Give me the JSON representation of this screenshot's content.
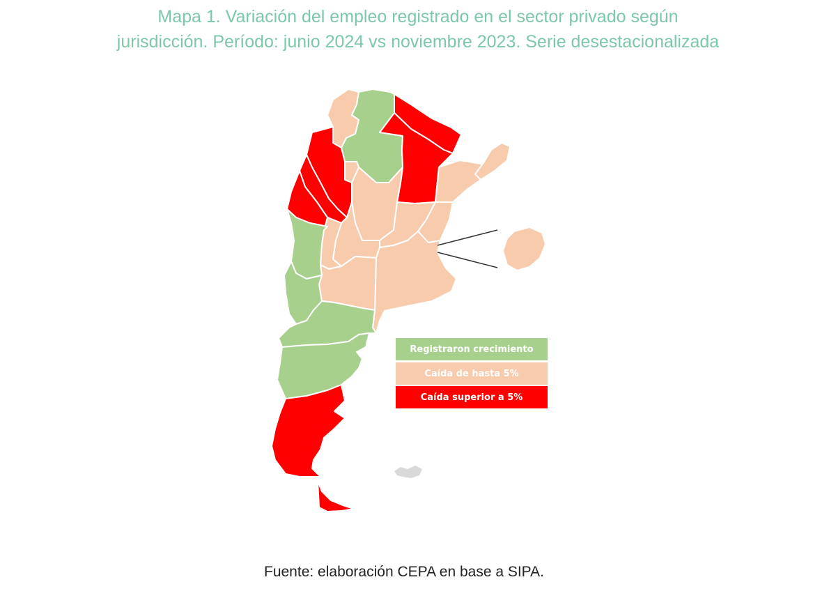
{
  "title": {
    "line1": "Mapa 1. Variación del empleo registrado en el sector privado según",
    "line2": "jurisdicción. Período: junio 2024 vs noviembre 2023. Serie desestacionalizada"
  },
  "colors": {
    "title": "#7cc8a8",
    "growth": "#a8d08d",
    "drop_up_to_5": "#f8cbad",
    "drop_over_5": "#ff0000",
    "border": "#ffffff",
    "islands": "#d9d9d9"
  },
  "legend": [
    {
      "label": "Registraron crecimiento",
      "category": "growth",
      "color": "#a8d08d"
    },
    {
      "label": "Caída de hasta 5%",
      "category": "drop_up_to_5",
      "color": "#f8cbad"
    },
    {
      "label": "Caída superior a 5%",
      "category": "drop_over_5",
      "color": "#ff0000"
    }
  ],
  "source": "Fuente: elaboración CEPA en base a SIPA."
}
